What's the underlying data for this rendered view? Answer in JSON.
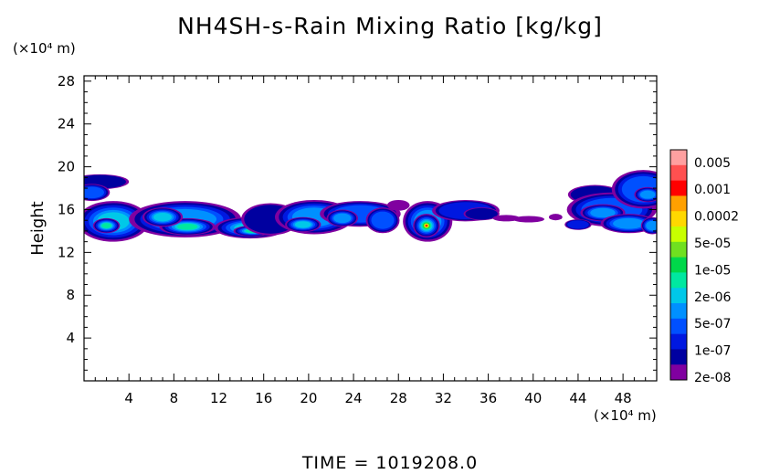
{
  "chart_data": {
    "type": "heatmap",
    "title": "NH4SH-s-Rain Mixing Ratio [kg/kg]",
    "ylabel": "Height",
    "y_unit": "(×10⁴ m)",
    "x_unit": "(×10⁴ m)",
    "xlim": [
      0,
      51
    ],
    "ylim": [
      0,
      28.5
    ],
    "x_ticks": [
      4,
      8,
      12,
      16,
      20,
      24,
      28,
      32,
      36,
      40,
      44,
      48
    ],
    "y_ticks": [
      4,
      8,
      12,
      16,
      20,
      24,
      28
    ],
    "colorbar": {
      "labels": [
        "0.005",
        "0.001",
        "0.0002",
        "5e-05",
        "1e-05",
        "2e-06",
        "5e-07",
        "1e-07",
        "2e-08"
      ],
      "colors_top_to_bottom": [
        "#ffa0a0",
        "#ff5050",
        "#ff0000",
        "#ffa000",
        "#ffd800",
        "#c8ff00",
        "#70e020",
        "#00d84a",
        "#00e8a0",
        "#00c8e8",
        "#0090ff",
        "#0050ff",
        "#0018e0",
        "#0000a0",
        "#8000a0"
      ]
    },
    "features": [
      {
        "x_range": [
          0,
          51
        ],
        "y_range": [
          13.3,
          17
        ],
        "value_range": [
          "2e-08",
          "5e-05"
        ],
        "note": "main layer"
      },
      {
        "x_range": [
          0,
          3
        ],
        "y_range": [
          17,
          19.5
        ],
        "value_range": [
          "2e-08",
          "1e-07"
        ]
      },
      {
        "x_range": [
          29.5,
          31.5
        ],
        "y_range": [
          13.5,
          16.5
        ],
        "value_range": [
          "1e-05",
          "0.001"
        ],
        "note": "core maximum near x=30.5, y=14.5"
      },
      {
        "x_range": [
          37,
          43
        ],
        "y_range": [
          14.5,
          15.8
        ],
        "value_range": [
          "2e-08",
          "5e-07"
        ],
        "note": "gap/sparse region"
      },
      {
        "x_range": [
          43,
          51
        ],
        "y_range": [
          13.5,
          19.8
        ],
        "value_range": [
          "2e-08",
          "5e-05"
        ]
      }
    ]
  },
  "footer": {
    "time": "TIME = 1019208.0"
  }
}
